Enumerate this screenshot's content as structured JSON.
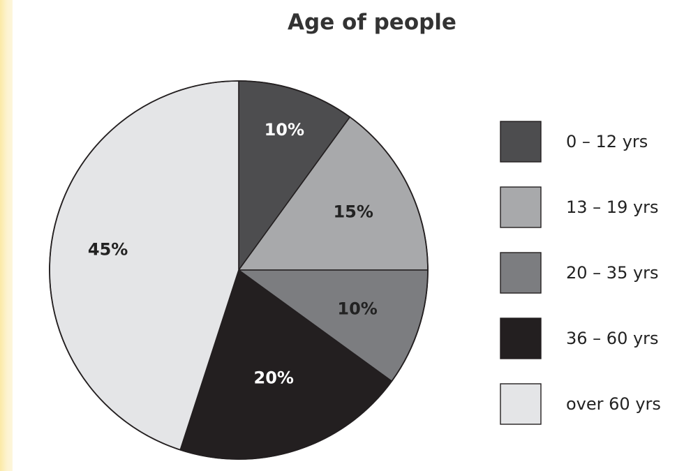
{
  "chart_data": {
    "type": "pie",
    "title": "Age of people",
    "categories": [
      "0 – 12 yrs",
      "13 – 19 yrs",
      "20 – 35 yrs",
      "36 – 60 yrs",
      "over 60 yrs"
    ],
    "values": [
      10,
      15,
      10,
      20,
      45
    ],
    "value_labels": [
      "10%",
      "15%",
      "10%",
      "20%",
      "45%"
    ],
    "colors": [
      "#4d4d4f",
      "#a8a9ab",
      "#7c7d80",
      "#231f20",
      "#e4e5e7"
    ],
    "label_colors": [
      "#ffffff",
      "#222222",
      "#222222",
      "#ffffff",
      "#222222"
    ],
    "start_angle_deg": 0,
    "direction": "clockwise",
    "legend_position": "right"
  }
}
